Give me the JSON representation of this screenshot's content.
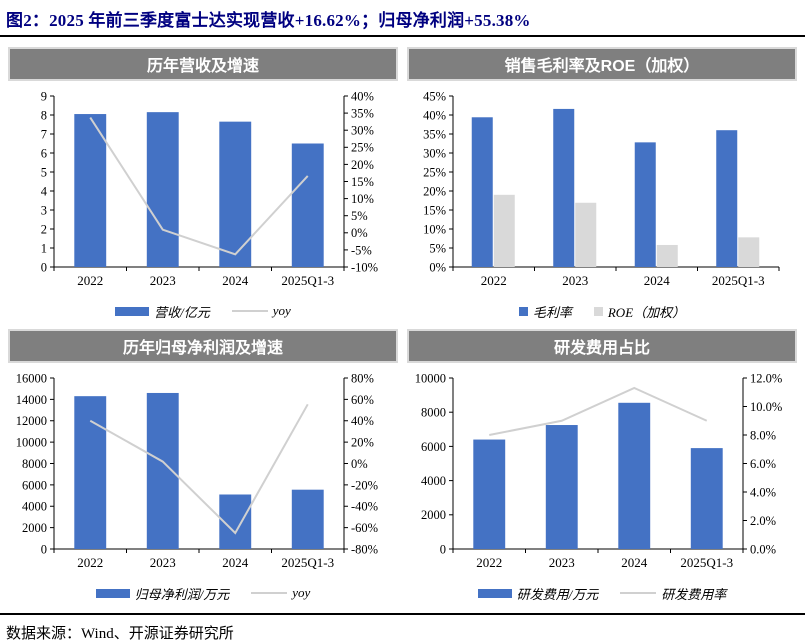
{
  "figure": {
    "title": "图2：2025 年前三季度富士达实现营收+16.62%；归母净利润+55.38%",
    "source": "数据来源：Wind、开源证券研究所",
    "colors": {
      "title_navy": "#000080",
      "header_gray": "#7f7f7f",
      "header_border": "#d9d9d9",
      "bar_blue": "#4472C4",
      "bar_gray": "#d9d9d9",
      "line_gray": "#d0d0d0",
      "axis_black": "#000000"
    }
  },
  "chart_data": [
    {
      "type": "bar+line",
      "title": "历年营收及增速",
      "categories": [
        "2022",
        "2023",
        "2024",
        "2025Q1-3"
      ],
      "bar_series": {
        "name": "营收/亿元",
        "color": "#4472C4",
        "values": [
          8.05,
          8.15,
          7.65,
          6.5
        ]
      },
      "line_series": {
        "name": "yoy",
        "color": "#d0d0d0",
        "axis": "right",
        "values": [
          33.7,
          0.9,
          -6.3,
          16.62
        ]
      },
      "left_axis": {
        "min": 0,
        "max": 9,
        "step": 1,
        "format": "int"
      },
      "right_axis": {
        "min": -10,
        "max": 40,
        "step": 5,
        "format": "pct0"
      },
      "xlabel": "",
      "ylabel": "",
      "grid": false,
      "legend_position": "bottom"
    },
    {
      "type": "grouped-bar",
      "title": "销售毛利率及ROE（加权）",
      "categories": [
        "2022",
        "2023",
        "2024",
        "2025Q1-3"
      ],
      "series": [
        {
          "name": "毛利率",
          "color": "#4472C4",
          "values": [
            39.4,
            41.6,
            32.8,
            36.0
          ]
        },
        {
          "name": "ROE（加权）",
          "color": "#d9d9d9",
          "values": [
            19.0,
            16.9,
            5.8,
            7.8
          ]
        }
      ],
      "left_axis": {
        "min": 0,
        "max": 45,
        "step": 5,
        "format": "pct0"
      },
      "xlabel": "",
      "ylabel": "",
      "grid": false,
      "legend_position": "bottom"
    },
    {
      "type": "bar+line",
      "title": "历年归母净利润及增速",
      "categories": [
        "2022",
        "2023",
        "2024",
        "2025Q1-3"
      ],
      "bar_series": {
        "name": "归母净利润/万元",
        "color": "#4472C4",
        "values": [
          14300,
          14600,
          5100,
          5550
        ]
      },
      "line_series": {
        "name": "yoy",
        "color": "#d0d0d0",
        "axis": "right",
        "values": [
          40.0,
          1.8,
          -65.0,
          55.38
        ]
      },
      "left_axis": {
        "min": 0,
        "max": 16000,
        "step": 2000,
        "format": "int"
      },
      "right_axis": {
        "min": -80,
        "max": 80,
        "step": 20,
        "format": "pct0"
      },
      "xlabel": "",
      "ylabel": "",
      "grid": false,
      "legend_position": "bottom"
    },
    {
      "type": "bar+line",
      "title": "研发费用占比",
      "categories": [
        "2022",
        "2023",
        "2024",
        "2025Q1-3"
      ],
      "bar_series": {
        "name": "研发费用/万元",
        "color": "#4472C4",
        "values": [
          6400,
          7250,
          8550,
          5900
        ]
      },
      "line_series": {
        "name": "研发费用率",
        "color": "#d0d0d0",
        "axis": "right",
        "values": [
          8.0,
          9.0,
          11.3,
          9.0
        ]
      },
      "left_axis": {
        "min": 0,
        "max": 10000,
        "step": 2000,
        "format": "int"
      },
      "right_axis": {
        "min": 0,
        "max": 12,
        "step": 2,
        "format": "pct1"
      },
      "xlabel": "",
      "ylabel": "",
      "grid": false,
      "legend_position": "bottom"
    }
  ]
}
